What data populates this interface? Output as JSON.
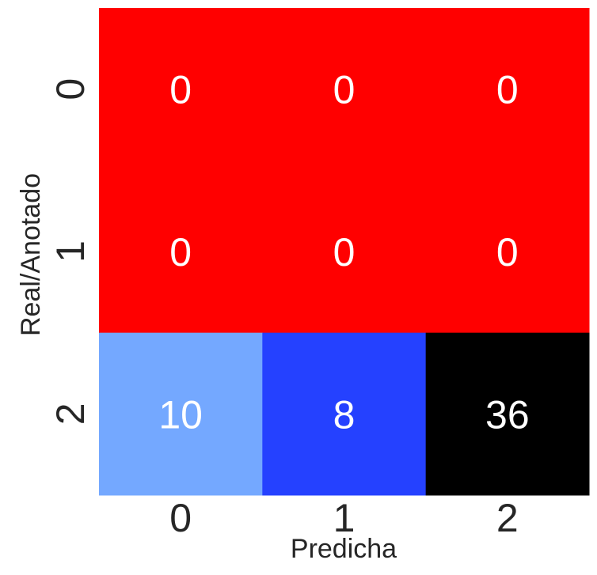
{
  "chart_data": {
    "type": "heatmap",
    "title": "",
    "xlabel": "Predicha",
    "ylabel": "Real/Anotado",
    "x_categories": [
      "0",
      "1",
      "2"
    ],
    "y_categories": [
      "0",
      "1",
      "2"
    ],
    "values": [
      [
        0,
        0,
        0
      ],
      [
        0,
        0,
        0
      ],
      [
        10,
        8,
        36
      ]
    ],
    "cell_colors": [
      [
        "#ff0000",
        "#ff0000",
        "#ff0000"
      ],
      [
        "#ff0000",
        "#ff0000",
        "#ff0000"
      ],
      [
        "#74a8ff",
        "#2541ff",
        "#000000"
      ]
    ],
    "annotation_color": "#ffffff",
    "colorbar": false,
    "grid": false
  }
}
